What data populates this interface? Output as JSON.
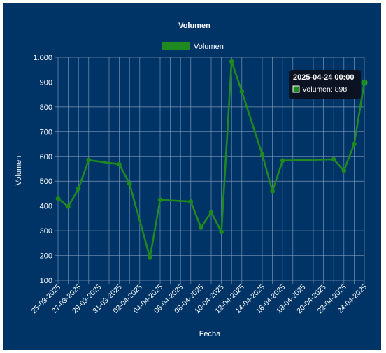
{
  "colors": {
    "background": "#003366",
    "line": "#1f8a1f",
    "grid": "#8fa6c4",
    "text": "#ffffff",
    "tooltip_bg": "#0b1322"
  },
  "chart_data": {
    "type": "line",
    "title": "Volumen",
    "xlabel": "Fecha",
    "ylabel": "Volumen",
    "legend": {
      "position": "top",
      "label": "Volumen"
    },
    "ylim": [
      100,
      1000
    ],
    "y_ticks": [
      "100",
      "200",
      "300",
      "400",
      "500",
      "600",
      "700",
      "800",
      "900",
      "1.000"
    ],
    "x_ticks": [
      "25-03-2025",
      "27-03-2025",
      "29-03-2025",
      "31-03-2025",
      "02-04-2025",
      "04-04-2025",
      "06-04-2025",
      "08-04-2025",
      "10-04-2025",
      "12-04-2025",
      "14-04-2025",
      "16-04-2025",
      "18-04-2025",
      "20-04-2025",
      "22-04-2025",
      "24-04-2025"
    ],
    "xlim": [
      "2025-03-25",
      "2025-04-24"
    ],
    "grid": true,
    "series": [
      {
        "name": "Volumen",
        "points": [
          {
            "x": "2025-03-25",
            "y": 430
          },
          {
            "x": "2025-03-26",
            "y": 398
          },
          {
            "x": "2025-03-27",
            "y": 470
          },
          {
            "x": "2025-03-28",
            "y": 585
          },
          {
            "x": "2025-03-31",
            "y": 568
          },
          {
            "x": "2025-04-01",
            "y": 490
          },
          {
            "x": "2025-04-03",
            "y": 192
          },
          {
            "x": "2025-04-04",
            "y": 425
          },
          {
            "x": "2025-04-07",
            "y": 418
          },
          {
            "x": "2025-04-08",
            "y": 313
          },
          {
            "x": "2025-04-09",
            "y": 375
          },
          {
            "x": "2025-04-10",
            "y": 295
          },
          {
            "x": "2025-04-11",
            "y": 983
          },
          {
            "x": "2025-04-12",
            "y": 862
          },
          {
            "x": "2025-04-14",
            "y": 608
          },
          {
            "x": "2025-04-15",
            "y": 460
          },
          {
            "x": "2025-04-16",
            "y": 583
          },
          {
            "x": "2025-04-21",
            "y": 588
          },
          {
            "x": "2025-04-22",
            "y": 543
          },
          {
            "x": "2025-04-23",
            "y": 650
          },
          {
            "x": "2025-04-24",
            "y": 898
          }
        ]
      }
    ],
    "tooltip": {
      "title": "2025-04-24 00:00",
      "label": "Volumen: 898"
    }
  }
}
